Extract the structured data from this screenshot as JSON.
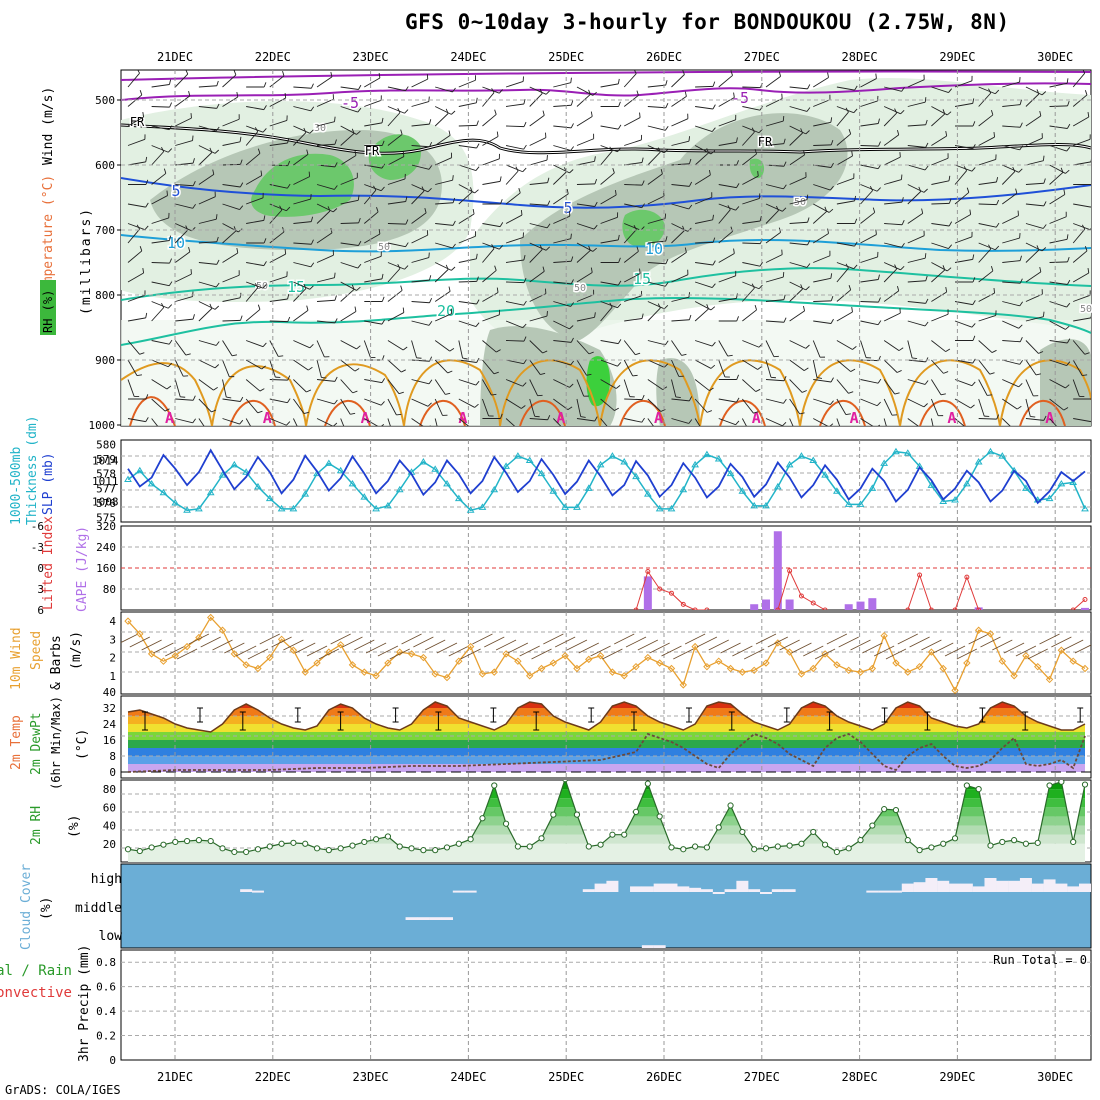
{
  "title": "GFS 0~10day 3-hourly for BONDOUKOU (2.75W, 8N)",
  "credit": "GrADS: COLA/IGES",
  "dates": [
    "21DEC",
    "22DEC",
    "23DEC",
    "24DEC",
    "25DEC",
    "26DEC",
    "27DEC",
    "28DEC",
    "29DEC",
    "30DEC"
  ],
  "colors": {
    "rh_fill": "#1fb01f",
    "temp_purple": "#9a1fb5",
    "temp_blue": "#1f50d8",
    "temp_cyan": "#1e9fd8",
    "temp_teal": "#1ec0a0",
    "warm_orange": "#e09a20",
    "slp": "#1f3fd0",
    "thickness": "#22b4c8",
    "cape": "#b070e8",
    "li": "#e03a3a",
    "wind10": "#e8a030",
    "cloud": "#6baed6",
    "precip_rain": "#22aa22",
    "precip_conv": "#e03a3a"
  },
  "panels": {
    "upper": {
      "ylabel_temp": "Temperature (°C)",
      "ylabel_wind": "Wind (m/s)",
      "ylabel_mb": "(millibars)",
      "rh_label": "RH (%)",
      "levels": [
        "500",
        "600",
        "700",
        "800",
        "900",
        "1000"
      ],
      "contour_labels": [
        "-5",
        "-5",
        "FR",
        "FR",
        "FR",
        "5",
        "5",
        "10",
        "10",
        "15",
        "15",
        "20",
        "30",
        "50",
        "50",
        "50",
        "50",
        "50"
      ]
    },
    "thickness": {
      "ylabel_left": "1000-500mb",
      "ylabel_left2": "Thickness (dm)",
      "ylabel_right": "SLP (mb)",
      "left_ticks": [
        "580",
        "579",
        "578",
        "577",
        "576",
        "575"
      ],
      "right_ticks": [
        "1014",
        "1011",
        "1008"
      ]
    },
    "cape": {
      "ylabel_li": "Lifted Index",
      "ylabel_cape": "CAPE (J/kg)",
      "li_ticks": [
        "-6",
        "-3",
        "0",
        "3",
        "6"
      ],
      "cape_ticks": [
        "320",
        "240",
        "160",
        "80"
      ]
    },
    "wind10": {
      "ylabel1": "10m Wind",
      "ylabel2": "Speed",
      "ylabel3": "& Barbs",
      "ylabel4": "(m/s)",
      "ticks": [
        "4",
        "3",
        "2",
        "1"
      ]
    },
    "temp2m": {
      "ylabel1": "2m Temp",
      "ylabel2": "2m DewPt",
      "ylabel3": "(6hr Min/Max)",
      "ylabel4": "(°C)",
      "ticks": [
        "40",
        "32",
        "24",
        "16",
        "8",
        "0"
      ]
    },
    "rh2m": {
      "ylabel1": "2m RH",
      "ylabel2": "(%)",
      "ticks": [
        "80",
        "60",
        "40",
        "20"
      ]
    },
    "cloud": {
      "ylabel1": "Cloud Cover",
      "ylabel2": "(%)",
      "rows": [
        "high",
        "middle",
        "low"
      ]
    },
    "precip": {
      "ylabel_a": "Total / Rain",
      "ylabel_b": "Convective",
      "ylabel_c": "3hr Precip (mm)",
      "ticks": [
        "0.8",
        "0.6",
        "0.4",
        "0.2",
        "0"
      ],
      "run_total": "Run Total = 0"
    }
  },
  "chart_data": [
    {
      "type": "line",
      "name": "SLP (mb)",
      "x_unit": "hours from 20DEC 12Z (3-hourly)",
      "ylim": [
        1005,
        1017
      ],
      "x": [
        0,
        3,
        6,
        9,
        12,
        15,
        18,
        21,
        24,
        27,
        30,
        33,
        36,
        39,
        42,
        45,
        48,
        51,
        54,
        57,
        60,
        63,
        66,
        69,
        72,
        75,
        78,
        81,
        84,
        87,
        90,
        93,
        96,
        99,
        102,
        105,
        108,
        111,
        114,
        117,
        120,
        123,
        126,
        129,
        132,
        135,
        138,
        141,
        144,
        147,
        150,
        153,
        156,
        159,
        162,
        165,
        168,
        171,
        174,
        177,
        180,
        183,
        186,
        189,
        192,
        195,
        198,
        201,
        204,
        207,
        210,
        213,
        216,
        219,
        222,
        225,
        228,
        231,
        234,
        237,
        240,
        243
      ],
      "values": [
        1012.8,
        1010.2,
        1011.5,
        1014.8,
        1012.8,
        1010.4,
        1012.3,
        1015.5,
        1012.6,
        1009.8,
        1011.6,
        1014.5,
        1012.3,
        1009.2,
        1011.2,
        1014.7,
        1012.4,
        1009.6,
        1011.4,
        1014.6,
        1012.1,
        1009.2,
        1011.0,
        1014.0,
        1012.0,
        1009.0,
        1010.8,
        1014.0,
        1012.0,
        1009.2,
        1011.0,
        1014.5,
        1012.2,
        1009.4,
        1011.0,
        1014.2,
        1011.9,
        1009.1,
        1010.9,
        1014.0,
        1011.7,
        1008.9,
        1010.4,
        1013.9,
        1011.8,
        1008.7,
        1010.4,
        1013.6,
        1011.5,
        1008.6,
        1010.2,
        1013.5,
        1011.6,
        1008.7,
        1010.5,
        1013.7,
        1011.5,
        1008.6,
        1010.4,
        1013.3,
        1011.2,
        1008.3,
        1009.9,
        1012.8,
        1011.0,
        1008.0,
        1009.7,
        1013.0,
        1011.1,
        1008.3,
        1009.9,
        1012.5,
        1010.8,
        1008.0,
        1009.6,
        1012.5,
        1011.0,
        1007.8,
        1009.5,
        1012.3,
        1011.0,
        1012.4
      ]
    },
    {
      "type": "line",
      "name": "1000-500mb Thickness (dm)",
      "ylim": [
        574.7,
        580.3
      ],
      "x": [
        0,
        3,
        6,
        9,
        12,
        15,
        18,
        21,
        24,
        27,
        30,
        33,
        36,
        39,
        42,
        45,
        48,
        51,
        54,
        57,
        60,
        63,
        66,
        69,
        72,
        75,
        78,
        81,
        84,
        87,
        90,
        93,
        96,
        99,
        102,
        105,
        108,
        111,
        114,
        117,
        120,
        123,
        126,
        129,
        132,
        135,
        138,
        141,
        144,
        147,
        150,
        153,
        156,
        159,
        162,
        165,
        168,
        171,
        174,
        177,
        180,
        183,
        186,
        189,
        192,
        195,
        198,
        201,
        204,
        207,
        210,
        213,
        216,
        219,
        222,
        225,
        228,
        231,
        234,
        237,
        240,
        243
      ],
      "values": [
        577.6,
        578.2,
        577.3,
        576.7,
        576.0,
        575.5,
        575.6,
        576.7,
        577.9,
        578.6,
        578.1,
        577.1,
        576.3,
        575.6,
        575.6,
        576.6,
        578.0,
        578.7,
        578.2,
        577.3,
        576.4,
        575.6,
        575.8,
        576.9,
        578.1,
        578.8,
        578.3,
        577.3,
        576.3,
        575.5,
        575.7,
        576.9,
        578.5,
        579.2,
        578.9,
        578.0,
        576.8,
        575.7,
        575.7,
        577.0,
        578.6,
        579.2,
        578.8,
        577.8,
        576.6,
        575.6,
        575.6,
        576.9,
        578.6,
        579.3,
        579.0,
        578.0,
        576.8,
        575.8,
        575.8,
        577.1,
        578.6,
        579.2,
        578.9,
        577.9,
        576.8,
        575.9,
        575.9,
        577.0,
        578.7,
        579.5,
        579.4,
        578.5,
        577.2,
        576.1,
        576.2,
        577.3,
        578.8,
        579.5,
        579.2,
        578.2,
        577.0,
        576.2,
        576.3,
        577.3,
        577.4,
        575.6
      ]
    },
    {
      "type": "line",
      "name": "Lifted Index",
      "ylim": [
        6,
        -6
      ],
      "x": [
        129,
        132,
        135,
        138,
        141,
        144,
        147,
        165,
        168,
        171,
        174,
        177,
        198,
        201,
        204,
        210,
        213,
        216,
        240,
        243
      ],
      "values": [
        6,
        0.5,
        3.0,
        3.6,
        5.2,
        6,
        6,
        6,
        0.4,
        4.0,
        5.0,
        6,
        6,
        1.0,
        6,
        6,
        1.3,
        6,
        6,
        4.5
      ]
    },
    {
      "type": "bar",
      "name": "CAPE (J/kg)",
      "ylim": [
        0,
        320
      ],
      "x": [
        132,
        159,
        162,
        165,
        168,
        183,
        186,
        189,
        216,
        243
      ],
      "values": [
        128,
        22,
        40,
        300,
        40,
        22,
        32,
        45,
        10,
        8
      ]
    },
    {
      "type": "line",
      "name": "10m Wind Speed (m/s)",
      "ylim": [
        0,
        4.5
      ],
      "x": [
        0,
        3,
        6,
        9,
        12,
        15,
        18,
        21,
        24,
        27,
        30,
        33,
        36,
        39,
        42,
        45,
        48,
        51,
        54,
        57,
        60,
        63,
        66,
        69,
        72,
        75,
        78,
        81,
        84,
        87,
        90,
        93,
        96,
        99,
        102,
        105,
        108,
        111,
        114,
        117,
        120,
        123,
        126,
        129,
        132,
        135,
        138,
        141,
        144,
        147,
        150,
        153,
        156,
        159,
        162,
        165,
        168,
        171,
        174,
        177,
        180,
        183,
        186,
        189,
        192,
        195,
        198,
        201,
        204,
        207,
        210,
        213,
        216,
        219,
        222,
        225,
        228,
        231,
        234,
        237,
        240,
        243
      ],
      "values": [
        4.0,
        3.3,
        2.2,
        1.8,
        2.1,
        2.6,
        3.1,
        4.2,
        3.5,
        2.2,
        1.6,
        1.4,
        2.0,
        3.0,
        2.4,
        1.2,
        1.7,
        2.3,
        2.7,
        1.6,
        1.2,
        1.0,
        1.7,
        2.3,
        2.2,
        2.0,
        1.1,
        0.9,
        1.8,
        2.6,
        1.1,
        1.2,
        2.2,
        1.8,
        1.0,
        1.4,
        1.7,
        2.1,
        1.4,
        1.9,
        2.1,
        1.2,
        1.0,
        1.5,
        2.0,
        1.7,
        1.4,
        0.5,
        2.6,
        1.5,
        1.8,
        1.4,
        1.2,
        1.3,
        1.7,
        2.8,
        2.3,
        1.1,
        1.4,
        2.2,
        1.6,
        1.3,
        1.2,
        1.4,
        3.2,
        1.7,
        1.2,
        1.5,
        2.3,
        1.4,
        0.2,
        1.7,
        3.5,
        3.3,
        1.8,
        1.0,
        2.1,
        1.5,
        0.8,
        2.4,
        1.8,
        1.4
      ]
    },
    {
      "type": "area",
      "name": "2m Temp (°C)",
      "ylim": [
        0,
        40
      ],
      "x": [
        0,
        3,
        6,
        9,
        12,
        15,
        18,
        21,
        24,
        27,
        30,
        33,
        36,
        39,
        42,
        45,
        48,
        51,
        54,
        57,
        60,
        63,
        66,
        69,
        72,
        75,
        78,
        81,
        84,
        87,
        90,
        93,
        96,
        99,
        102,
        105,
        108,
        111,
        114,
        117,
        120,
        123,
        126,
        129,
        132,
        135,
        138,
        141,
        144,
        147,
        150,
        153,
        156,
        159,
        162,
        165,
        168,
        171,
        174,
        177,
        180,
        183,
        186,
        189,
        192,
        195,
        198,
        201,
        204,
        207,
        210,
        213,
        216,
        219,
        222,
        225,
        228,
        231,
        234,
        237,
        240,
        243
      ],
      "values": [
        30,
        31,
        29,
        27,
        24,
        22,
        21,
        20,
        24,
        31,
        34,
        31,
        27,
        24,
        22,
        21,
        23,
        31,
        34,
        32,
        27,
        24,
        22,
        21,
        24,
        31,
        35,
        33,
        27,
        25,
        23,
        21,
        24,
        32,
        35,
        34,
        28,
        25,
        23,
        21,
        25,
        33,
        35,
        33,
        28,
        25,
        23,
        21,
        24,
        33,
        35,
        34,
        29,
        25,
        23,
        21,
        24,
        32,
        35,
        33,
        28,
        25,
        23,
        21,
        24,
        32,
        35,
        33,
        27,
        25,
        23,
        22,
        24,
        32,
        35,
        33,
        28,
        25,
        23,
        21,
        21,
        24
      ]
    },
    {
      "type": "line",
      "name": "2m DewPt (°C)",
      "ylim": [
        0,
        40
      ],
      "x": [
        0,
        12,
        24,
        36,
        48,
        60,
        72,
        84,
        96,
        108,
        120,
        129,
        132,
        135,
        138,
        141,
        144,
        147,
        150,
        153,
        156,
        159,
        162,
        165,
        168,
        171,
        174,
        177,
        180,
        183,
        186,
        189,
        192,
        195,
        198,
        201,
        204,
        207,
        210,
        213,
        216,
        219,
        222,
        225,
        228,
        231,
        234,
        237,
        240,
        243
      ],
      "values": [
        0,
        1,
        1,
        1,
        2,
        2,
        3,
        3,
        4,
        5,
        6,
        10,
        19,
        17,
        15,
        12,
        8,
        4,
        2,
        9,
        14,
        19,
        17,
        14,
        9,
        6,
        3,
        12,
        17,
        19,
        15,
        9,
        3,
        1,
        8,
        12,
        14,
        8,
        3,
        2,
        3,
        6,
        12,
        17,
        4,
        3,
        4,
        6,
        2,
        18
      ]
    },
    {
      "type": "area",
      "name": "2m RH (%)",
      "ylim": [
        0,
        90
      ],
      "x": [
        0,
        3,
        6,
        9,
        12,
        15,
        18,
        21,
        24,
        27,
        30,
        33,
        36,
        39,
        42,
        45,
        48,
        51,
        54,
        57,
        60,
        63,
        66,
        69,
        72,
        75,
        78,
        81,
        84,
        87,
        90,
        93,
        96,
        99,
        102,
        105,
        108,
        111,
        114,
        117,
        120,
        123,
        126,
        129,
        132,
        135,
        138,
        141,
        144,
        147,
        150,
        153,
        156,
        159,
        162,
        165,
        168,
        171,
        174,
        177,
        180,
        183,
        186,
        189,
        192,
        195,
        198,
        201,
        204,
        207,
        210,
        213,
        216,
        219,
        222,
        225,
        228,
        231,
        234,
        237,
        240,
        243
      ],
      "values": [
        14,
        12,
        16,
        19,
        22,
        23,
        24,
        23,
        15,
        11,
        11,
        14,
        17,
        20,
        21,
        20,
        15,
        13,
        15,
        18,
        22,
        25,
        28,
        17,
        15,
        13,
        13,
        16,
        20,
        25,
        48,
        84,
        42,
        17,
        17,
        26,
        52,
        91,
        52,
        17,
        19,
        30,
        30,
        55,
        86,
        50,
        16,
        14,
        17,
        16,
        38,
        62,
        33,
        14,
        15,
        17,
        18,
        20,
        33,
        19,
        11,
        15,
        24,
        40,
        58,
        57,
        24,
        13,
        16,
        20,
        26,
        84,
        80,
        18,
        22,
        24,
        20,
        21,
        84,
        88,
        22,
        85
      ]
    },
    {
      "type": "bar",
      "name": "Cloud Cover high (%)",
      "x": [
        30,
        33,
        84,
        87,
        117,
        120,
        123,
        129,
        132,
        135,
        138,
        141,
        144,
        147,
        150,
        153,
        156,
        159,
        162,
        165,
        168,
        189,
        192,
        195,
        198,
        201,
        204,
        207,
        210,
        213,
        216,
        219,
        222,
        225,
        228,
        231,
        234,
        237,
        240,
        243
      ],
      "values": [
        10,
        5,
        5,
        5,
        10,
        30,
        40,
        20,
        20,
        30,
        30,
        20,
        15,
        10,
        0,
        10,
        40,
        10,
        0,
        10,
        10,
        5,
        5,
        5,
        30,
        35,
        50,
        40,
        30,
        30,
        20,
        50,
        40,
        40,
        50,
        30,
        45,
        30,
        20,
        30
      ]
    },
    {
      "type": "bar",
      "name": "Cloud Cover middle (%)",
      "x": [
        72,
        75,
        78,
        81
      ],
      "values": [
        10,
        10,
        10,
        10
      ]
    },
    {
      "type": "bar",
      "name": "Cloud Cover low (%)",
      "x": [
        132,
        135
      ],
      "values": [
        10,
        10
      ]
    },
    {
      "type": "bar",
      "name": "3hr Precip (mm)",
      "ylim": [
        0,
        0.9
      ],
      "x": [],
      "values": []
    }
  ]
}
